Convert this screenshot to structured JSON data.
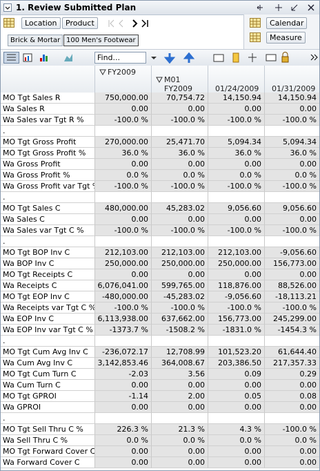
{
  "header": {
    "title": "1. Review Submitted Plan"
  },
  "toolbar": {
    "location": "Location",
    "product": "Product",
    "calendar": "Calendar",
    "measure": "Measure",
    "find": "Find..."
  },
  "breadcrumb": [
    "Brick & Mortar",
    "100 Men's Footwear"
  ],
  "columns": [
    "FY2009",
    "M01 FY2009",
    "01/24/2009",
    "01/31/2009"
  ],
  "rows": [
    {
      "label": "MO Tgt Sales R",
      "cells": [
        "750,000.00",
        "70,754.72",
        "14,150.94",
        "14,150.94"
      ]
    },
    {
      "label": "Wa Sales R",
      "cells": [
        "0.00",
        "0.00",
        "0.00",
        "0.00"
      ]
    },
    {
      "label": "Wa Sales var Tgt R %",
      "cells": [
        "-100.0 %",
        "-100.0 %",
        "-100.0 %",
        "-100.0 %"
      ]
    },
    {
      "label": "."
    },
    {
      "label": "MO Tgt Gross Profit",
      "cells": [
        "270,000.00",
        "25,471.70",
        "5,094.34",
        "5,094.34"
      ]
    },
    {
      "label": "MO Tgt Gross Profit %",
      "cells": [
        "36.0 %",
        "36.0 %",
        "36.0 %",
        "36.0 %"
      ]
    },
    {
      "label": "Wa Gross Profit",
      "cells": [
        "0.00",
        "0.00",
        "0.00",
        "0.00"
      ]
    },
    {
      "label": "Wa Gross Profit %",
      "cells": [
        "0.0 %",
        "0.0 %",
        "0.0 %",
        "0.0 %"
      ]
    },
    {
      "label": "Wa Gross Profit var Tgt %",
      "cells": [
        "-100.0 %",
        "-100.0 %",
        "-100.0 %",
        "-100.0 %"
      ]
    },
    {
      "label": "."
    },
    {
      "label": "MO Tgt Sales C",
      "cells": [
        "480,000.00",
        "45,283.02",
        "9,056.60",
        "9,056.60"
      ]
    },
    {
      "label": "Wa Sales C",
      "cells": [
        "0.00",
        "0.00",
        "0.00",
        "0.00"
      ]
    },
    {
      "label": "Wa Sales var Tgt C %",
      "cells": [
        "-100.0 %",
        "-100.0 %",
        "-100.0 %",
        "-100.0 %"
      ]
    },
    {
      "label": "."
    },
    {
      "label": "MO Tgt BOP Inv C",
      "cells": [
        "212,103.00",
        "212,103.00",
        "212,103.00",
        "-9,056.60"
      ]
    },
    {
      "label": "Wa BOP Inv C",
      "cells": [
        "250,000.00",
        "250,000.00",
        "250,000.00",
        "156,773.00"
      ]
    },
    {
      "label": "MO Tgt Receipts C",
      "cells": [
        "0.00",
        "0.00",
        "0.00",
        "0.00"
      ]
    },
    {
      "label": "Wa Receipts C",
      "cells": [
        "6,076,041.00",
        "599,765.00",
        "118,876.00",
        "88,526.00"
      ]
    },
    {
      "label": "MO Tgt EOP Inv C",
      "cells": [
        "-480,000.00",
        "-45,283.02",
        "-9,056.60",
        "-18,113.21"
      ]
    },
    {
      "label": "Wa Receipts var Tgt C %",
      "cells": [
        "-100.0 %",
        "-100.0 %",
        "-100.0 %",
        "-100.0 %"
      ]
    },
    {
      "label": "Wa EOP Inv C",
      "cells": [
        "6,113,938.00",
        "637,662.00",
        "156,773.00",
        "245,299.00"
      ]
    },
    {
      "label": "Wa EOP Inv var Tgt C %",
      "cells": [
        "-1373.7 %",
        "-1508.2 %",
        "-1831.0 %",
        "-1454.3 %"
      ]
    },
    {
      "label": "."
    },
    {
      "label": "MO Tgt Cum Avg Inv C",
      "cells": [
        "-236,072.17",
        "12,708.99",
        "101,523.20",
        "61,644.40"
      ]
    },
    {
      "label": "Wa Cum Avg Inv C",
      "cells": [
        "3,142,853.46",
        "364,008.67",
        "203,386.50",
        "217,357.33"
      ]
    },
    {
      "label": "MO Tgt Cum Turn C",
      "cells": [
        "-2.03",
        "3.56",
        "0.09",
        "0.29"
      ]
    },
    {
      "label": "Wa Cum Turn C",
      "cells": [
        "0.00",
        "0.00",
        "0.00",
        "0.00"
      ]
    },
    {
      "label": "MO Tgt GPROI",
      "cells": [
        "-1.14",
        "2.00",
        "0.05",
        "0.08"
      ]
    },
    {
      "label": "Wa GPROI",
      "cells": [
        "0.00",
        "0.00",
        "0.00",
        "0.00"
      ]
    },
    {
      "label": "."
    },
    {
      "label": "MO Tgt Sell Thru C %",
      "cells": [
        "226.3 %",
        "21.3 %",
        "4.3 %",
        "-100.0 %"
      ]
    },
    {
      "label": "Wa Sell Thru C %",
      "cells": [
        "0.0 %",
        "0.0 %",
        "0.0 %",
        "0.0 %"
      ]
    },
    {
      "label": "MO Tgt Forward Cover C",
      "cells": [
        "0.00",
        "0.00",
        "0.00",
        "0.00"
      ]
    },
    {
      "label": "Wa Forward Cover C",
      "cells": [
        "0.00",
        "0.00",
        "0.00",
        "0.00"
      ]
    }
  ]
}
